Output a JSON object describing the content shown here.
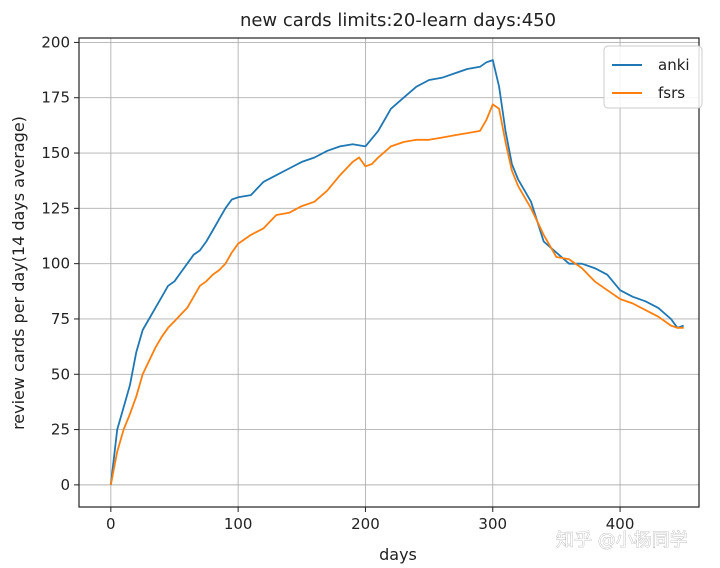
{
  "chart_data": {
    "type": "line",
    "title": "new cards limits:20-learn days:450",
    "xlabel": "days",
    "ylabel": "review cards per day(14 days average)",
    "xlim": [
      -25,
      462
    ],
    "ylim": [
      -10,
      202
    ],
    "xticks": [
      0,
      100,
      200,
      300,
      400
    ],
    "yticks": [
      0,
      25,
      50,
      75,
      100,
      125,
      150,
      175,
      200
    ],
    "grid": true,
    "legend_position": "top-right",
    "series": [
      {
        "name": "anki",
        "color": "#1f77b4",
        "x": [
          0,
          5,
          10,
          15,
          20,
          25,
          30,
          35,
          40,
          45,
          50,
          55,
          60,
          65,
          70,
          75,
          80,
          85,
          90,
          95,
          100,
          110,
          120,
          130,
          140,
          150,
          160,
          170,
          180,
          190,
          200,
          210,
          220,
          230,
          240,
          250,
          260,
          270,
          280,
          290,
          295,
          300,
          305,
          310,
          315,
          320,
          330,
          340,
          350,
          360,
          370,
          380,
          390,
          400,
          410,
          420,
          430,
          440,
          445,
          450
        ],
        "values": [
          0,
          25,
          35,
          45,
          60,
          70,
          75,
          80,
          85,
          90,
          92,
          96,
          100,
          104,
          106,
          110,
          115,
          120,
          125,
          129,
          130,
          131,
          137,
          140,
          143,
          146,
          148,
          151,
          153,
          154,
          153,
          160,
          170,
          175,
          180,
          183,
          184,
          186,
          188,
          189,
          191,
          192,
          180,
          160,
          145,
          138,
          128,
          110,
          105,
          100,
          100,
          98,
          95,
          88,
          85,
          83,
          80,
          75,
          71,
          72
        ]
      },
      {
        "name": "fsrs",
        "color": "#ff7f0e",
        "x": [
          0,
          5,
          10,
          15,
          20,
          25,
          30,
          35,
          40,
          45,
          50,
          55,
          60,
          65,
          70,
          75,
          80,
          85,
          90,
          95,
          100,
          110,
          120,
          130,
          140,
          150,
          160,
          170,
          180,
          190,
          195,
          200,
          205,
          210,
          220,
          230,
          240,
          250,
          260,
          270,
          280,
          290,
          295,
          300,
          305,
          310,
          315,
          320,
          330,
          340,
          350,
          360,
          370,
          380,
          390,
          400,
          410,
          420,
          430,
          440,
          445,
          450
        ],
        "values": [
          0,
          15,
          25,
          32,
          40,
          50,
          56,
          62,
          67,
          71,
          74,
          77,
          80,
          85,
          90,
          92,
          95,
          97,
          100,
          105,
          109,
          113,
          116,
          122,
          123,
          126,
          128,
          133,
          140,
          146,
          148,
          144,
          145,
          148,
          153,
          155,
          156,
          156,
          157,
          158,
          159,
          160,
          165,
          172,
          170,
          155,
          142,
          135,
          125,
          113,
          103,
          102,
          98,
          92,
          88,
          84,
          82,
          79,
          76,
          72,
          71,
          71
        ]
      }
    ]
  },
  "watermark": "知乎 @小杨同学"
}
